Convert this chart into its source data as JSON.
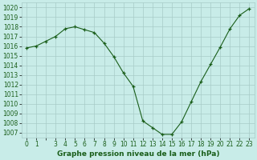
{
  "x": [
    0,
    1,
    2,
    3,
    4,
    5,
    6,
    7,
    8,
    9,
    10,
    11,
    12,
    13,
    14,
    15,
    16,
    17,
    18,
    19,
    20,
    21,
    22,
    23
  ],
  "y": [
    1015.8,
    1016.0,
    1016.5,
    1017.0,
    1017.8,
    1018.0,
    1017.7,
    1017.4,
    1016.3,
    1014.9,
    1013.2,
    1011.8,
    1008.2,
    1007.5,
    1006.8,
    1006.8,
    1008.1,
    1010.2,
    1012.3,
    1014.1,
    1015.9,
    1017.8,
    1019.2,
    1019.9
  ],
  "line_color": "#1a5e1a",
  "marker": "+",
  "bg_color": "#c8ece8",
  "grid_color": "#a8ccc8",
  "title": "Graphe pression niveau de la mer (hPa)",
  "ylabel_min": 1007,
  "ylabel_max": 1020,
  "ylabel_step": 1,
  "xlim": [
    -0.5,
    23.5
  ],
  "ylim": [
    1006.5,
    1020.5
  ],
  "xtick_labels": [
    "0",
    "1",
    "",
    "3",
    "4",
    "5",
    "6",
    "7",
    "8",
    "9",
    "10",
    "11",
    "12",
    "13",
    "14",
    "15",
    "16",
    "17",
    "18",
    "19",
    "20",
    "21",
    "22",
    "23"
  ],
  "tick_fontsize": 5.5,
  "title_fontsize": 6.5,
  "title_fontweight": "bold"
}
